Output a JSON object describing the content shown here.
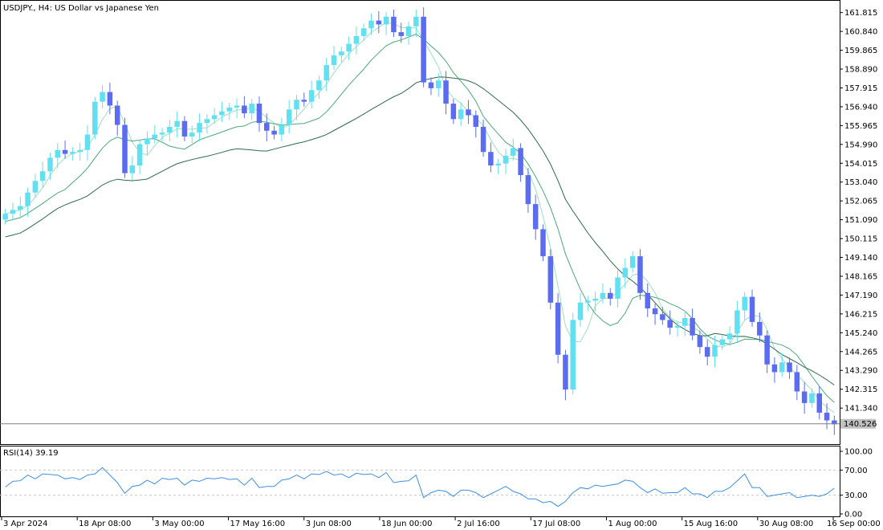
{
  "header": {
    "symbol_line": "USDJPY., H4:  US Dollar vs Japanese Yen"
  },
  "rsi": {
    "label": "RSI(14) 39.19",
    "levels_labels": [
      "100.00",
      "70.00",
      "30.00",
      "0.00"
    ]
  },
  "price_axis": {
    "current_price_label": "140.526"
  },
  "colors": {
    "bull_candle": "#60e0f0",
    "bear_candle": "#5b6cf0",
    "ma_fast": "#9ee0c0",
    "ma_mid": "#4aa878",
    "ma_slow": "#2e6a4a",
    "rsi_line": "#3d8fe0",
    "grid_dashed": "#c8c8c8",
    "price_line": "#808080",
    "price_tag_bg": "#c0c0c0"
  },
  "chart_data": [
    {
      "type": "line",
      "description_source": "main price chart (candlestick approximated by close path)",
      "y_ticks": [
        "161.815",
        "160.840",
        "159.865",
        "158.890",
        "157.915",
        "156.940",
        "155.965",
        "154.990",
        "154.015",
        "153.040",
        "152.065",
        "151.090",
        "150.115",
        "149.140",
        "148.165",
        "147.190",
        "146.215",
        "145.240",
        "144.265",
        "143.290",
        "142.315",
        "141.340"
      ],
      "ylim": [
        139.6,
        162.3
      ],
      "x_tick_labels": [
        "3 Apr 2024",
        "18 Apr 08:00",
        "3 May 00:00",
        "17 May 16:00",
        "3 Jun 08:00",
        "18 Jun 00:00",
        "2 Jul 16:00",
        "17 Jul 08:00",
        "1 Aug 00:00",
        "15 Aug 16:00",
        "30 Aug 08:00",
        "16 Sep 00:00"
      ],
      "series": [
        {
          "values": [
            151.4,
            151.6,
            151.8,
            152.5,
            153.1,
            153.6,
            154.3,
            154.7,
            154.5,
            154.6,
            154.7,
            155.5,
            157.2,
            157.7,
            157.0,
            156.0,
            153.5,
            153.9,
            155.0,
            155.3,
            155.5,
            155.6,
            155.9,
            156.2,
            155.4,
            155.6,
            156.1,
            156.3,
            156.5,
            156.7,
            156.9,
            157.0,
            156.6,
            157.1,
            156.1,
            155.7,
            155.5,
            156.0,
            156.8,
            157.3,
            157.2,
            157.8,
            158.3,
            159.1,
            159.6,
            159.8,
            160.2,
            160.6,
            161.0,
            161.4,
            161.2,
            161.6,
            160.8,
            160.6,
            161.1,
            161.6,
            158.2,
            157.9,
            158.3,
            157.1,
            156.3,
            156.8,
            156.5,
            155.9,
            154.6,
            153.9,
            154.0,
            154.4,
            154.8,
            153.4,
            151.9,
            150.6,
            149.2,
            146.8,
            144.1,
            142.3,
            145.9,
            146.8,
            146.9,
            147.0,
            147.3,
            147.0,
            148.1,
            148.6,
            149.2,
            147.3,
            146.5,
            146.2,
            145.9,
            145.5,
            145.6,
            146.0,
            145.1,
            144.5,
            144.0,
            144.6,
            144.9,
            145.2,
            146.4,
            147.1,
            145.8,
            145.1,
            143.6,
            143.2,
            143.7,
            143.2,
            142.2,
            141.6,
            142.1,
            141.1,
            140.7,
            140.5
          ]
        }
      ]
    },
    {
      "type": "line",
      "description_source": "RSI(14) sub-window",
      "ylim": [
        0,
        100
      ],
      "levels": [
        70,
        30
      ],
      "series": [
        {
          "name": "RSI(14)",
          "values": [
            45,
            50,
            55,
            60,
            58,
            62,
            65,
            60,
            58,
            56,
            57,
            60,
            66,
            72,
            64,
            48,
            35,
            42,
            48,
            52,
            50,
            55,
            57,
            55,
            48,
            52,
            54,
            55,
            58,
            56,
            57,
            54,
            48,
            55,
            44,
            42,
            46,
            52,
            58,
            60,
            58,
            62,
            65,
            66,
            64,
            62,
            60,
            63,
            65,
            62,
            60,
            64,
            52,
            50,
            55,
            60,
            28,
            32,
            40,
            34,
            30,
            36,
            40,
            32,
            28,
            30,
            40,
            42,
            38,
            30,
            26,
            22,
            20,
            18,
            14,
            18,
            36,
            40,
            42,
            44,
            46,
            44,
            50,
            52,
            54,
            40,
            36,
            38,
            35,
            32,
            36,
            40,
            34,
            30,
            28,
            34,
            38,
            40,
            55,
            62,
            44,
            40,
            30,
            28,
            34,
            32,
            28,
            26,
            32,
            26,
            34,
            39.19
          ]
        }
      ]
    }
  ]
}
